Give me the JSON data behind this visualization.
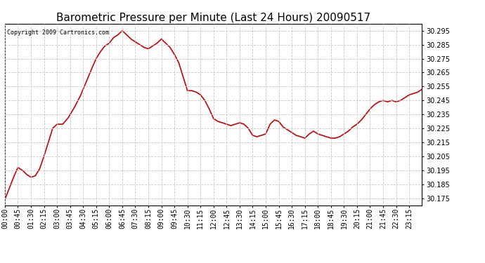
{
  "title": "Barometric Pressure per Minute (Last 24 Hours) 20090517",
  "copyright": "Copyright 2009 Cartronics.com",
  "line_color": "#cc0000",
  "bg_color": "#ffffff",
  "grid_color": "#c8c8c8",
  "ylim": [
    30.17,
    30.3
  ],
  "yticks": [
    30.175,
    30.185,
    30.195,
    30.205,
    30.215,
    30.225,
    30.235,
    30.245,
    30.255,
    30.265,
    30.275,
    30.285,
    30.295
  ],
  "xtick_labels": [
    "00:00",
    "00:45",
    "01:30",
    "02:15",
    "03:00",
    "03:45",
    "04:30",
    "05:15",
    "06:00",
    "06:45",
    "07:30",
    "08:15",
    "09:00",
    "09:45",
    "10:30",
    "11:15",
    "12:00",
    "12:45",
    "13:30",
    "14:15",
    "15:00",
    "15:45",
    "16:30",
    "17:15",
    "18:00",
    "18:45",
    "19:30",
    "20:15",
    "21:00",
    "21:45",
    "22:30",
    "23:15"
  ],
  "title_fontsize": 11,
  "tick_fontsize": 7,
  "copyright_fontsize": 6,
  "linewidth": 1.2,
  "ctrl_x": [
    0,
    30,
    45,
    60,
    75,
    90,
    105,
    120,
    135,
    150,
    165,
    180,
    200,
    220,
    240,
    260,
    280,
    300,
    315,
    330,
    345,
    360,
    375,
    390,
    405,
    420,
    435,
    450,
    465,
    480,
    495,
    510,
    525,
    540,
    555,
    570,
    585,
    600,
    615,
    630,
    645,
    660,
    675,
    690,
    705,
    720,
    735,
    750,
    765,
    780,
    795,
    810,
    825,
    840,
    855,
    870,
    885,
    900,
    915,
    930,
    945,
    960,
    975,
    990,
    1005,
    1020,
    1035,
    1050,
    1065,
    1080,
    1095,
    1110,
    1125,
    1140,
    1155,
    1170,
    1185,
    1200,
    1215,
    1230,
    1245,
    1260,
    1275,
    1290,
    1305,
    1320,
    1335,
    1350,
    1365,
    1380,
    1395,
    1410,
    1425,
    1439
  ],
  "ctrl_y": [
    30.174,
    30.19,
    30.197,
    30.195,
    30.192,
    30.19,
    30.191,
    30.196,
    30.205,
    30.215,
    30.225,
    30.228,
    30.228,
    30.233,
    30.24,
    30.248,
    30.258,
    30.268,
    30.275,
    30.28,
    30.284,
    30.286,
    30.29,
    30.292,
    30.295,
    30.292,
    30.289,
    30.287,
    30.285,
    30.283,
    30.282,
    30.284,
    30.286,
    30.289,
    30.286,
    30.283,
    30.278,
    30.272,
    30.262,
    30.252,
    30.252,
    30.251,
    30.249,
    30.245,
    30.239,
    30.232,
    30.23,
    30.229,
    30.228,
    30.227,
    30.228,
    30.229,
    30.228,
    30.225,
    30.22,
    30.219,
    30.22,
    30.221,
    30.228,
    30.231,
    30.23,
    30.226,
    30.224,
    30.222,
    30.22,
    30.219,
    30.218,
    30.221,
    30.223,
    30.221,
    30.22,
    30.219,
    30.218,
    30.218,
    30.219,
    30.221,
    30.223,
    30.226,
    30.228,
    30.231,
    30.235,
    30.239,
    30.242,
    30.244,
    30.245,
    30.244,
    30.245,
    30.244,
    30.245,
    30.247,
    30.249,
    30.25,
    30.251,
    30.253
  ]
}
